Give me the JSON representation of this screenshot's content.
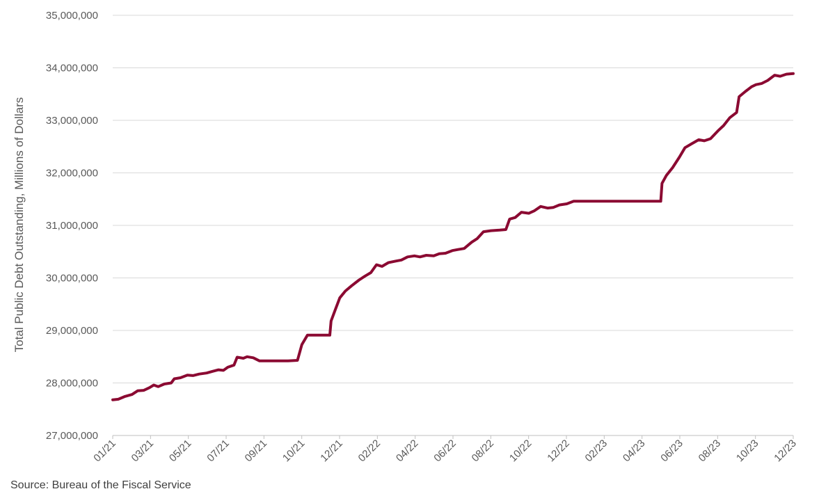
{
  "chart_data": {
    "type": "line",
    "title": "",
    "xlabel": "",
    "ylabel": "Total Public Debt Outstanding, Millions of Dollars",
    "ylim": [
      27000000,
      35000000
    ],
    "yticks": [
      27000000,
      28000000,
      29000000,
      30000000,
      31000000,
      32000000,
      33000000,
      34000000,
      35000000
    ],
    "ytick_labels": [
      "27,000,000",
      "28,000,000",
      "29,000,000",
      "30,000,000",
      "31,000,000",
      "32,000,000",
      "33,000,000",
      "34,000,000",
      "35,000,000"
    ],
    "xticks": [
      "01/21",
      "03/21",
      "05/21",
      "07/21",
      "09/21",
      "10/21",
      "12/21",
      "02/22",
      "04/22",
      "06/22",
      "08/22",
      "10/22",
      "12/22",
      "02/23",
      "04/23",
      "06/23",
      "08/23",
      "10/23",
      "12/23"
    ],
    "xlim": [
      "2021-01-01",
      "2023-12-31"
    ],
    "grid": true,
    "legend": "none",
    "series": [
      {
        "color": "#8B0A32",
        "points": [
          [
            "2021-01-01",
            27680000
          ],
          [
            "2021-01-10",
            27690000
          ],
          [
            "2021-01-20",
            27740000
          ],
          [
            "2021-02-01",
            27780000
          ],
          [
            "2021-02-10",
            27850000
          ],
          [
            "2021-02-20",
            27860000
          ],
          [
            "2021-03-01",
            27910000
          ],
          [
            "2021-03-08",
            27960000
          ],
          [
            "2021-03-15",
            27930000
          ],
          [
            "2021-03-25",
            27980000
          ],
          [
            "2021-04-05",
            28000000
          ],
          [
            "2021-04-10",
            28080000
          ],
          [
            "2021-04-20",
            28100000
          ],
          [
            "2021-05-01",
            28150000
          ],
          [
            "2021-05-10",
            28140000
          ],
          [
            "2021-05-20",
            28170000
          ],
          [
            "2021-06-01",
            28190000
          ],
          [
            "2021-06-10",
            28220000
          ],
          [
            "2021-06-20",
            28250000
          ],
          [
            "2021-06-28",
            28240000
          ],
          [
            "2021-07-05",
            28300000
          ],
          [
            "2021-07-15",
            28340000
          ],
          [
            "2021-07-20",
            28490000
          ],
          [
            "2021-07-30",
            28470000
          ],
          [
            "2021-08-05",
            28500000
          ],
          [
            "2021-08-15",
            28480000
          ],
          [
            "2021-08-25",
            28420000
          ],
          [
            "2021-09-15",
            28420000
          ],
          [
            "2021-10-10",
            28420000
          ],
          [
            "2021-10-25",
            28430000
          ],
          [
            "2021-11-01",
            28730000
          ],
          [
            "2021-11-10",
            28910000
          ],
          [
            "2021-12-01",
            28910000
          ],
          [
            "2021-12-16",
            28910000
          ],
          [
            "2021-12-18",
            29180000
          ],
          [
            "2021-12-25",
            29400000
          ],
          [
            "2022-01-01",
            29620000
          ],
          [
            "2022-01-10",
            29750000
          ],
          [
            "2022-01-20",
            29850000
          ],
          [
            "2022-02-01",
            29960000
          ],
          [
            "2022-02-10",
            30030000
          ],
          [
            "2022-02-20",
            30100000
          ],
          [
            "2022-03-01",
            30250000
          ],
          [
            "2022-03-10",
            30220000
          ],
          [
            "2022-03-20",
            30290000
          ],
          [
            "2022-04-01",
            30320000
          ],
          [
            "2022-04-10",
            30340000
          ],
          [
            "2022-04-20",
            30400000
          ],
          [
            "2022-05-01",
            30420000
          ],
          [
            "2022-05-10",
            30400000
          ],
          [
            "2022-05-20",
            30430000
          ],
          [
            "2022-06-01",
            30420000
          ],
          [
            "2022-06-10",
            30460000
          ],
          [
            "2022-06-20",
            30470000
          ],
          [
            "2022-07-01",
            30520000
          ],
          [
            "2022-07-10",
            30540000
          ],
          [
            "2022-07-20",
            30560000
          ],
          [
            "2022-08-01",
            30680000
          ],
          [
            "2022-08-10",
            30750000
          ],
          [
            "2022-08-20",
            30880000
          ],
          [
            "2022-09-01",
            30900000
          ],
          [
            "2022-09-15",
            30910000
          ],
          [
            "2022-09-25",
            30920000
          ],
          [
            "2022-10-01",
            31120000
          ],
          [
            "2022-10-10",
            31150000
          ],
          [
            "2022-10-20",
            31250000
          ],
          [
            "2022-11-01",
            31230000
          ],
          [
            "2022-11-10",
            31280000
          ],
          [
            "2022-11-20",
            31360000
          ],
          [
            "2022-12-01",
            31330000
          ],
          [
            "2022-12-10",
            31340000
          ],
          [
            "2022-12-20",
            31390000
          ],
          [
            "2023-01-01",
            31410000
          ],
          [
            "2023-01-12",
            31460000
          ],
          [
            "2023-02-15",
            31460000
          ],
          [
            "2023-03-15",
            31460000
          ],
          [
            "2023-05-01",
            31460000
          ],
          [
            "2023-06-01",
            31460000
          ],
          [
            "2023-06-03",
            31800000
          ],
          [
            "2023-06-10",
            31950000
          ],
          [
            "2023-06-20",
            32100000
          ],
          [
            "2023-07-01",
            32300000
          ],
          [
            "2023-07-10",
            32480000
          ],
          [
            "2023-07-20",
            32550000
          ],
          [
            "2023-08-01",
            32630000
          ],
          [
            "2023-08-10",
            32610000
          ],
          [
            "2023-08-20",
            32650000
          ],
          [
            "2023-09-01",
            32800000
          ],
          [
            "2023-09-10",
            32900000
          ],
          [
            "2023-09-20",
            33050000
          ],
          [
            "2023-10-01",
            33150000
          ],
          [
            "2023-10-05",
            33450000
          ],
          [
            "2023-10-15",
            33550000
          ],
          [
            "2023-10-25",
            33640000
          ],
          [
            "2023-11-01",
            33680000
          ],
          [
            "2023-11-10",
            33700000
          ],
          [
            "2023-11-20",
            33760000
          ],
          [
            "2023-12-01",
            33860000
          ],
          [
            "2023-12-10",
            33840000
          ],
          [
            "2023-12-20",
            33880000
          ],
          [
            "2023-12-31",
            33890000
          ]
        ]
      }
    ]
  },
  "source": "Source: Bureau of the Fiscal Service"
}
